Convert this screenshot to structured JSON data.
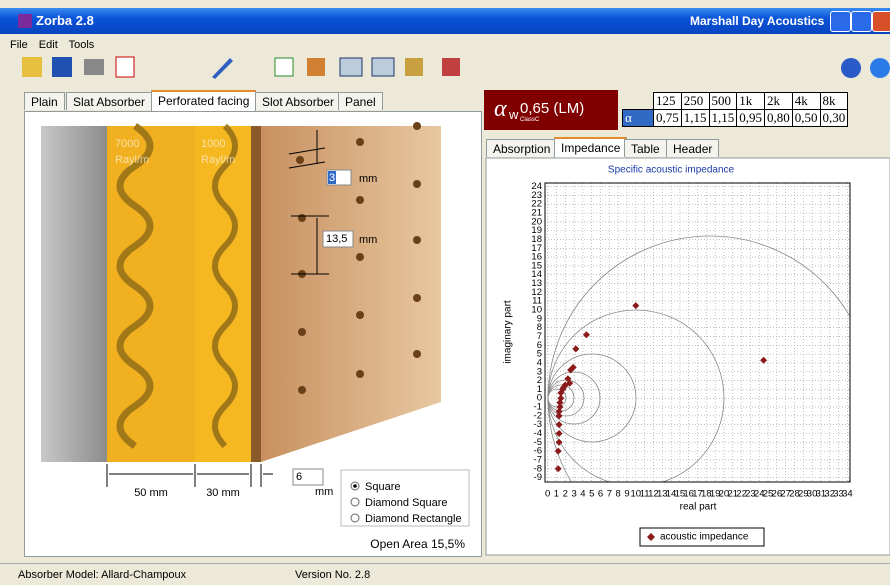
{
  "window": {
    "title": "Zorba  2.8",
    "company": "Marshall Day Acoustics"
  },
  "menu": [
    "File",
    "Edit",
    "Tools"
  ],
  "left_tabs": [
    "Plain",
    "Slat Absorber",
    "Perforated facing",
    "Slot Absorber",
    "Panel"
  ],
  "drawing": {
    "layer_labels": [
      [
        "7000",
        "Rayl/m"
      ],
      [
        "1000",
        "Rayl/m"
      ]
    ],
    "hole_diameter": "3",
    "hole_unit": "mm",
    "spacing": "13,5",
    "spacing_unit": "mm",
    "thicknesses": [
      "50 mm",
      "30 mm"
    ],
    "facing_thickness": "6",
    "facing_unit": "mm",
    "patterns": [
      "Square",
      "Diamond Square",
      "Diamond Rectangle"
    ],
    "open_area": "Open Area 15,5%"
  },
  "rating": {
    "symbol": "α",
    "sub": "w",
    "value": "0,65 (LM)",
    "class": "ClassC"
  },
  "absorption_table": {
    "header": [
      "125",
      "250",
      "500",
      "1k",
      "2k",
      "4k",
      "8k"
    ],
    "row_label": "α",
    "values": [
      "0,75",
      "1,15",
      "1,15",
      "0,95",
      "0,80",
      "0,50",
      "0,30"
    ]
  },
  "right_tabs": [
    "Absorption",
    "Impedance",
    "Table",
    "Header"
  ],
  "chart_data": {
    "type": "scatter",
    "title": "Specific acoustic impedance",
    "x_label": "real part",
    "y_label": "imaginary part",
    "xlim": [
      -0.3,
      34.3
    ],
    "ylim": [
      -9.5,
      24.4
    ],
    "xticks": [
      0,
      1,
      2,
      3,
      4,
      5,
      6,
      7,
      8,
      9,
      10,
      11,
      12,
      13,
      14,
      15,
      16,
      17,
      18,
      19,
      20,
      21,
      22,
      23,
      24,
      25,
      26,
      27,
      28,
      29,
      30,
      31,
      32,
      33,
      34
    ],
    "yticks": [
      -9,
      -8,
      -7,
      -6,
      -5,
      -4,
      -3,
      -2,
      -1,
      0,
      1,
      2,
      3,
      4,
      5,
      6,
      7,
      8,
      9,
      10,
      11,
      12,
      13,
      14,
      15,
      16,
      17,
      18,
      19,
      20,
      21,
      22,
      23,
      24
    ],
    "grid": true,
    "legend": "bottom",
    "series": [
      {
        "name": "acoustic impedance",
        "color": "#8b1a1a",
        "x": [
          10,
          24.5,
          4.4,
          3.2,
          2.9,
          2.6,
          2.5,
          2.3,
          2.0,
          1.8,
          1.7,
          1.5,
          1.5,
          1.4,
          1.4,
          1.3,
          1.3,
          1.3,
          1.3,
          1.3,
          1.2,
          1.2
        ],
        "values": [
          10.5,
          4.3,
          7.2,
          5.6,
          3.5,
          3.2,
          1.7,
          2.2,
          1.5,
          1.2,
          1.0,
          0.6,
          0,
          -0.5,
          -1,
          -1.5,
          -2,
          -3,
          -4,
          -5,
          -6,
          -8
        ]
      }
    ]
  },
  "status": {
    "model": "Absorber Model: Allard-Champoux",
    "version": "Version No. 2.8"
  }
}
